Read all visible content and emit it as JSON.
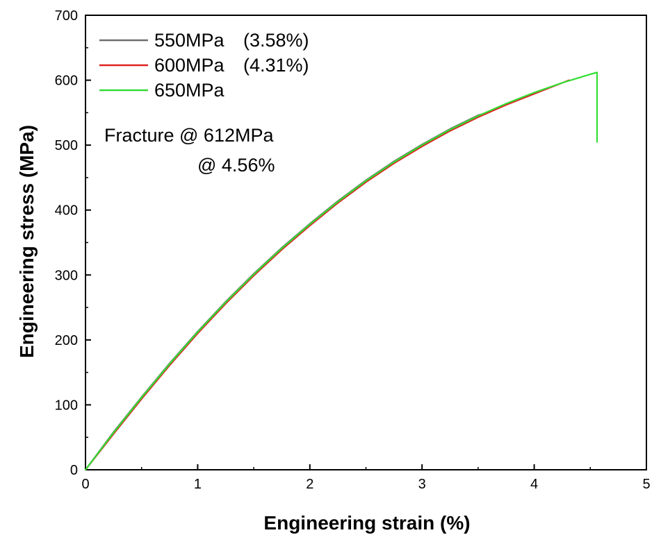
{
  "chart_data": {
    "type": "line",
    "title": "",
    "xlabel": "Engineering strain (%)",
    "ylabel": "Engineering stress (MPa)",
    "xlim": [
      0,
      5
    ],
    "ylim": [
      0,
      700
    ],
    "xticks": [
      0,
      1,
      2,
      3,
      4,
      5
    ],
    "yticks": [
      0,
      100,
      200,
      300,
      400,
      500,
      600,
      700
    ],
    "grid": false,
    "legend_position": "top-left",
    "series": [
      {
        "name": "550MPa",
        "legend_note": "(3.58%)",
        "color": "#6e6e6e",
        "x": [
          0,
          0.25,
          0.5,
          0.75,
          1.0,
          1.25,
          1.5,
          1.75,
          2.0,
          2.25,
          2.5,
          2.75,
          3.0,
          3.25,
          3.5,
          3.58
        ],
        "y": [
          0,
          58,
          112,
          164,
          213,
          259,
          302,
          342,
          379,
          414,
          446,
          475,
          501,
          525,
          546,
          550
        ]
      },
      {
        "name": "600MPa",
        "legend_note": "(4.31%)",
        "color": "#e02020",
        "x": [
          0,
          0.25,
          0.5,
          0.75,
          1.0,
          1.25,
          1.5,
          1.75,
          2.0,
          2.25,
          2.5,
          2.75,
          3.0,
          3.25,
          3.5,
          3.75,
          4.0,
          4.31
        ],
        "y": [
          0,
          55,
          109,
          161,
          210,
          256,
          299,
          339,
          376,
          411,
          443,
          472,
          498,
          522,
          543,
          562,
          579,
          600
        ]
      },
      {
        "name": "650MPa",
        "legend_note": "",
        "color": "#33dd33",
        "x": [
          0,
          0.25,
          0.5,
          0.75,
          1.0,
          1.25,
          1.5,
          1.75,
          2.0,
          2.25,
          2.5,
          2.75,
          3.0,
          3.25,
          3.5,
          3.75,
          4.0,
          4.25,
          4.5,
          4.56,
          4.56
        ],
        "y": [
          0,
          57,
          111,
          163,
          212,
          258,
          301,
          341,
          378,
          413,
          445,
          474,
          500,
          524,
          545,
          564,
          581,
          596,
          609,
          612,
          505
        ]
      }
    ],
    "annotations": [
      {
        "text": "Fracture @ 612MPa"
      },
      {
        "text": "@ 4.56%"
      }
    ]
  }
}
